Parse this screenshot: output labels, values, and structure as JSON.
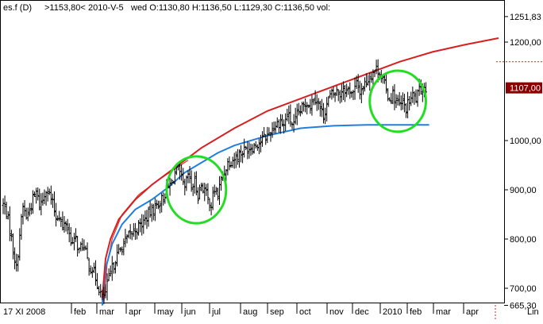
{
  "header": {
    "symbol": "es.f (D)",
    "last": ">1153,80<",
    "date": "2010-V-5",
    "ohlc": "wed O:1130,80 H:1136,50 L:1129,30 C:1136,50 vol:"
  },
  "colors": {
    "background": "#ffffff",
    "bars": "#000000",
    "upper_curve": "#d62020",
    "lower_curve": "#1f7fe0",
    "circles": "#22dd22",
    "price_tag_bg": "#8b0000",
    "price_tag_text": "#ffffff",
    "dashed_line": "#d62020"
  },
  "chart_data": {
    "type": "ohlc",
    "x_axis": {
      "start_label": "17 XI 2008",
      "month_labels": [
        "feb",
        "mar",
        "apr",
        "may",
        "jun",
        "jul",
        "aug",
        "sep",
        "oct",
        "nov",
        "dec",
        "2010",
        "feb",
        "mar",
        "apr"
      ],
      "scale_label": "Lin"
    },
    "y_axis": {
      "tick_labels": [
        "1251,83",
        "1200,00",
        "1107,00",
        "1000,00",
        "900,00",
        "800,00",
        "700,00",
        "665,30"
      ],
      "ylim": [
        665.3,
        1251.83
      ]
    },
    "current_price_label": "1107,00",
    "current_price": 1107,
    "dashed_level": 1160,
    "price_anchors": [
      [
        0,
        870
      ],
      [
        2,
        855
      ],
      [
        4,
        820
      ],
      [
        6,
        780
      ],
      [
        8,
        740
      ],
      [
        10,
        810
      ],
      [
        12,
        865
      ],
      [
        14,
        845
      ],
      [
        16,
        860
      ],
      [
        18,
        880
      ],
      [
        20,
        895
      ],
      [
        22,
        870
      ],
      [
        24,
        880
      ],
      [
        26,
        905
      ],
      [
        28,
        890
      ],
      [
        30,
        870
      ],
      [
        32,
        845
      ],
      [
        34,
        850
      ],
      [
        36,
        820
      ],
      [
        38,
        835
      ],
      [
        40,
        810
      ],
      [
        42,
        790
      ],
      [
        44,
        800
      ],
      [
        46,
        775
      ],
      [
        48,
        790
      ],
      [
        50,
        770
      ],
      [
        52,
        745
      ],
      [
        54,
        740
      ],
      [
        56,
        720
      ],
      [
        58,
        700
      ],
      [
        60,
        680
      ],
      [
        62,
        690
      ],
      [
        64,
        720
      ],
      [
        66,
        740
      ],
      [
        68,
        760
      ],
      [
        72,
        785
      ],
      [
        76,
        805
      ],
      [
        80,
        820
      ],
      [
        84,
        830
      ],
      [
        88,
        850
      ],
      [
        92,
        865
      ],
      [
        96,
        880
      ],
      [
        100,
        905
      ],
      [
        102,
        915
      ],
      [
        104,
        935
      ],
      [
        106,
        940
      ],
      [
        108,
        920
      ],
      [
        110,
        900
      ],
      [
        112,
        930
      ],
      [
        114,
        905
      ],
      [
        116,
        915
      ],
      [
        118,
        890
      ],
      [
        120,
        910
      ],
      [
        122,
        900
      ],
      [
        124,
        880
      ],
      [
        126,
        870
      ],
      [
        128,
        900
      ],
      [
        130,
        890
      ],
      [
        132,
        920
      ],
      [
        136,
        955
      ],
      [
        140,
        965
      ],
      [
        144,
        975
      ],
      [
        148,
        985
      ],
      [
        152,
        990
      ],
      [
        156,
        1000
      ],
      [
        160,
        1010
      ],
      [
        164,
        1030
      ],
      [
        168,
        1040
      ],
      [
        170,
        1030
      ],
      [
        172,
        1055
      ],
      [
        174,
        1040
      ],
      [
        176,
        1030
      ],
      [
        178,
        1050
      ],
      [
        180,
        1060
      ],
      [
        182,
        1070
      ],
      [
        184,
        1080
      ],
      [
        186,
        1070
      ],
      [
        188,
        1090
      ],
      [
        190,
        1085
      ],
      [
        192,
        1065
      ],
      [
        194,
        1050
      ],
      [
        196,
        1075
      ],
      [
        198,
        1090
      ],
      [
        200,
        1095
      ],
      [
        202,
        1100
      ],
      [
        204,
        1095
      ],
      [
        206,
        1110
      ],
      [
        208,
        1100
      ],
      [
        210,
        1105
      ],
      [
        212,
        1095
      ],
      [
        214,
        1115
      ],
      [
        216,
        1100
      ],
      [
        218,
        1110
      ],
      [
        220,
        1120
      ],
      [
        222,
        1130
      ],
      [
        224,
        1140
      ],
      [
        226,
        1145
      ],
      [
        228,
        1140
      ],
      [
        230,
        1125
      ],
      [
        232,
        1100
      ],
      [
        234,
        1085
      ],
      [
        236,
        1095
      ],
      [
        238,
        1080
      ],
      [
        240,
        1070
      ],
      [
        242,
        1075
      ],
      [
        244,
        1065
      ],
      [
        246,
        1080
      ],
      [
        248,
        1090
      ],
      [
        250,
        1085
      ],
      [
        252,
        1100
      ],
      [
        254,
        1110
      ],
      [
        256,
        1105
      ]
    ],
    "upper_curve": {
      "name": "",
      "points": [
        [
          60,
          680
        ],
        [
          62,
          760
        ],
        [
          65,
          800
        ],
        [
          70,
          840
        ],
        [
          80,
          880
        ],
        [
          90,
          910
        ],
        [
          100,
          935
        ],
        [
          120,
          985
        ],
        [
          140,
          1025
        ],
        [
          160,
          1060
        ],
        [
          180,
          1085
        ],
        [
          200,
          1110
        ],
        [
          220,
          1135
        ],
        [
          240,
          1160
        ],
        [
          260,
          1180
        ],
        [
          280,
          1195
        ],
        [
          300,
          1208
        ]
      ]
    },
    "upper_curve_thin": {
      "name": "",
      "points": [
        [
          61,
          670
        ],
        [
          63,
          750
        ],
        [
          66,
          800
        ],
        [
          72,
          850
        ],
        [
          82,
          890
        ],
        [
          92,
          915
        ],
        [
          103,
          940
        ],
        [
          112,
          960
        ]
      ]
    },
    "lower_curve": {
      "name": "",
      "points": [
        [
          60,
          665
        ],
        [
          62,
          740
        ],
        [
          66,
          790
        ],
        [
          72,
          830
        ],
        [
          80,
          860
        ],
        [
          90,
          880
        ],
        [
          100,
          905
        ],
        [
          110,
          935
        ],
        [
          120,
          955
        ],
        [
          130,
          975
        ],
        [
          140,
          990
        ],
        [
          160,
          1010
        ],
        [
          180,
          1025
        ],
        [
          200,
          1030
        ],
        [
          220,
          1032
        ],
        [
          240,
          1032
        ],
        [
          258,
          1032
        ]
      ]
    },
    "circles": [
      {
        "x": 117,
        "y": 900,
        "rx": 18,
        "ry": 68
      },
      {
        "x": 239,
        "y": 1080,
        "rx": 17,
        "ry": 62
      }
    ]
  }
}
